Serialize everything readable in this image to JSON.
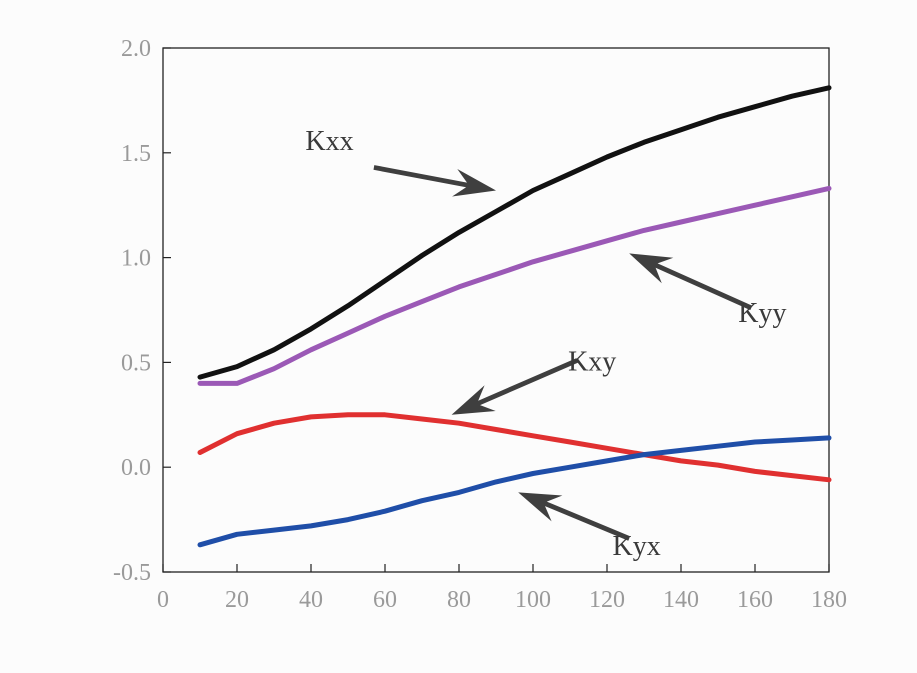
{
  "chart_data": {
    "type": "line",
    "title": "",
    "xlabel": "",
    "ylabel": "",
    "xlim": [
      0,
      180
    ],
    "ylim": [
      -0.5,
      2.0
    ],
    "x_ticks": [
      {
        "value": 0,
        "label": "0"
      },
      {
        "value": 20,
        "label": "20"
      },
      {
        "value": 40,
        "label": "40"
      },
      {
        "value": 60,
        "label": "60"
      },
      {
        "value": 80,
        "label": "80"
      },
      {
        "value": 100,
        "label": "100"
      },
      {
        "value": 120,
        "label": "120"
      },
      {
        "value": 140,
        "label": "140"
      },
      {
        "value": 160,
        "label": "160"
      },
      {
        "value": 180,
        "label": "180"
      }
    ],
    "y_ticks": [
      {
        "value": -0.5,
        "label": "-0.5"
      },
      {
        "value": 0.0,
        "label": "0.0"
      },
      {
        "value": 0.5,
        "label": "0.5"
      },
      {
        "value": 1.0,
        "label": "1.0"
      },
      {
        "value": 1.5,
        "label": "1.5"
      },
      {
        "value": 2.0,
        "label": "2.0"
      }
    ],
    "grid": false,
    "x": [
      10,
      20,
      30,
      40,
      50,
      60,
      70,
      80,
      90,
      100,
      110,
      120,
      130,
      140,
      150,
      160,
      170,
      180
    ],
    "series": [
      {
        "name": "Kxx",
        "color": "#111111",
        "values": [
          0.43,
          0.48,
          0.56,
          0.66,
          0.77,
          0.89,
          1.01,
          1.12,
          1.22,
          1.32,
          1.4,
          1.48,
          1.55,
          1.61,
          1.67,
          1.72,
          1.77,
          1.81
        ]
      },
      {
        "name": "Kyy",
        "color": "#9b59b6",
        "values": [
          0.4,
          0.4,
          0.47,
          0.56,
          0.64,
          0.72,
          0.79,
          0.86,
          0.92,
          0.98,
          1.03,
          1.08,
          1.13,
          1.17,
          1.21,
          1.25,
          1.29,
          1.33
        ]
      },
      {
        "name": "Kxy",
        "color": "#e03030",
        "values": [
          0.07,
          0.16,
          0.21,
          0.24,
          0.25,
          0.25,
          0.23,
          0.21,
          0.18,
          0.15,
          0.12,
          0.09,
          0.06,
          0.03,
          0.01,
          -0.02,
          -0.04,
          -0.06
        ]
      },
      {
        "name": "Kyx",
        "color": "#1f4ea8",
        "values": [
          -0.37,
          -0.32,
          -0.3,
          -0.28,
          -0.25,
          -0.21,
          -0.16,
          -0.12,
          -0.07,
          -0.03,
          0.0,
          0.03,
          0.06,
          0.08,
          0.1,
          0.12,
          0.13,
          0.14
        ]
      }
    ],
    "annotations": [
      {
        "label": "Kxx",
        "series": "Kxx",
        "label_x": 45,
        "label_y": 1.56,
        "tail_x": 57,
        "tail_y": 1.43,
        "head_x": 90,
        "head_y": 1.32
      },
      {
        "label": "Kyy",
        "series": "Kyy",
        "label_x": 162,
        "label_y": 0.74,
        "tail_x": 159,
        "tail_y": 0.76,
        "head_x": 126,
        "head_y": 1.02
      },
      {
        "label": "Kxy",
        "series": "Kxy",
        "label_x": 116,
        "label_y": 0.51,
        "tail_x": 112,
        "tail_y": 0.51,
        "head_x": 78,
        "head_y": 0.25
      },
      {
        "label": "Kyx",
        "series": "Kyx",
        "label_x": 128,
        "label_y": -0.37,
        "tail_x": 126,
        "tail_y": -0.34,
        "head_x": 96,
        "head_y": -0.12
      }
    ],
    "annotation_color": "#3f3f3f"
  }
}
